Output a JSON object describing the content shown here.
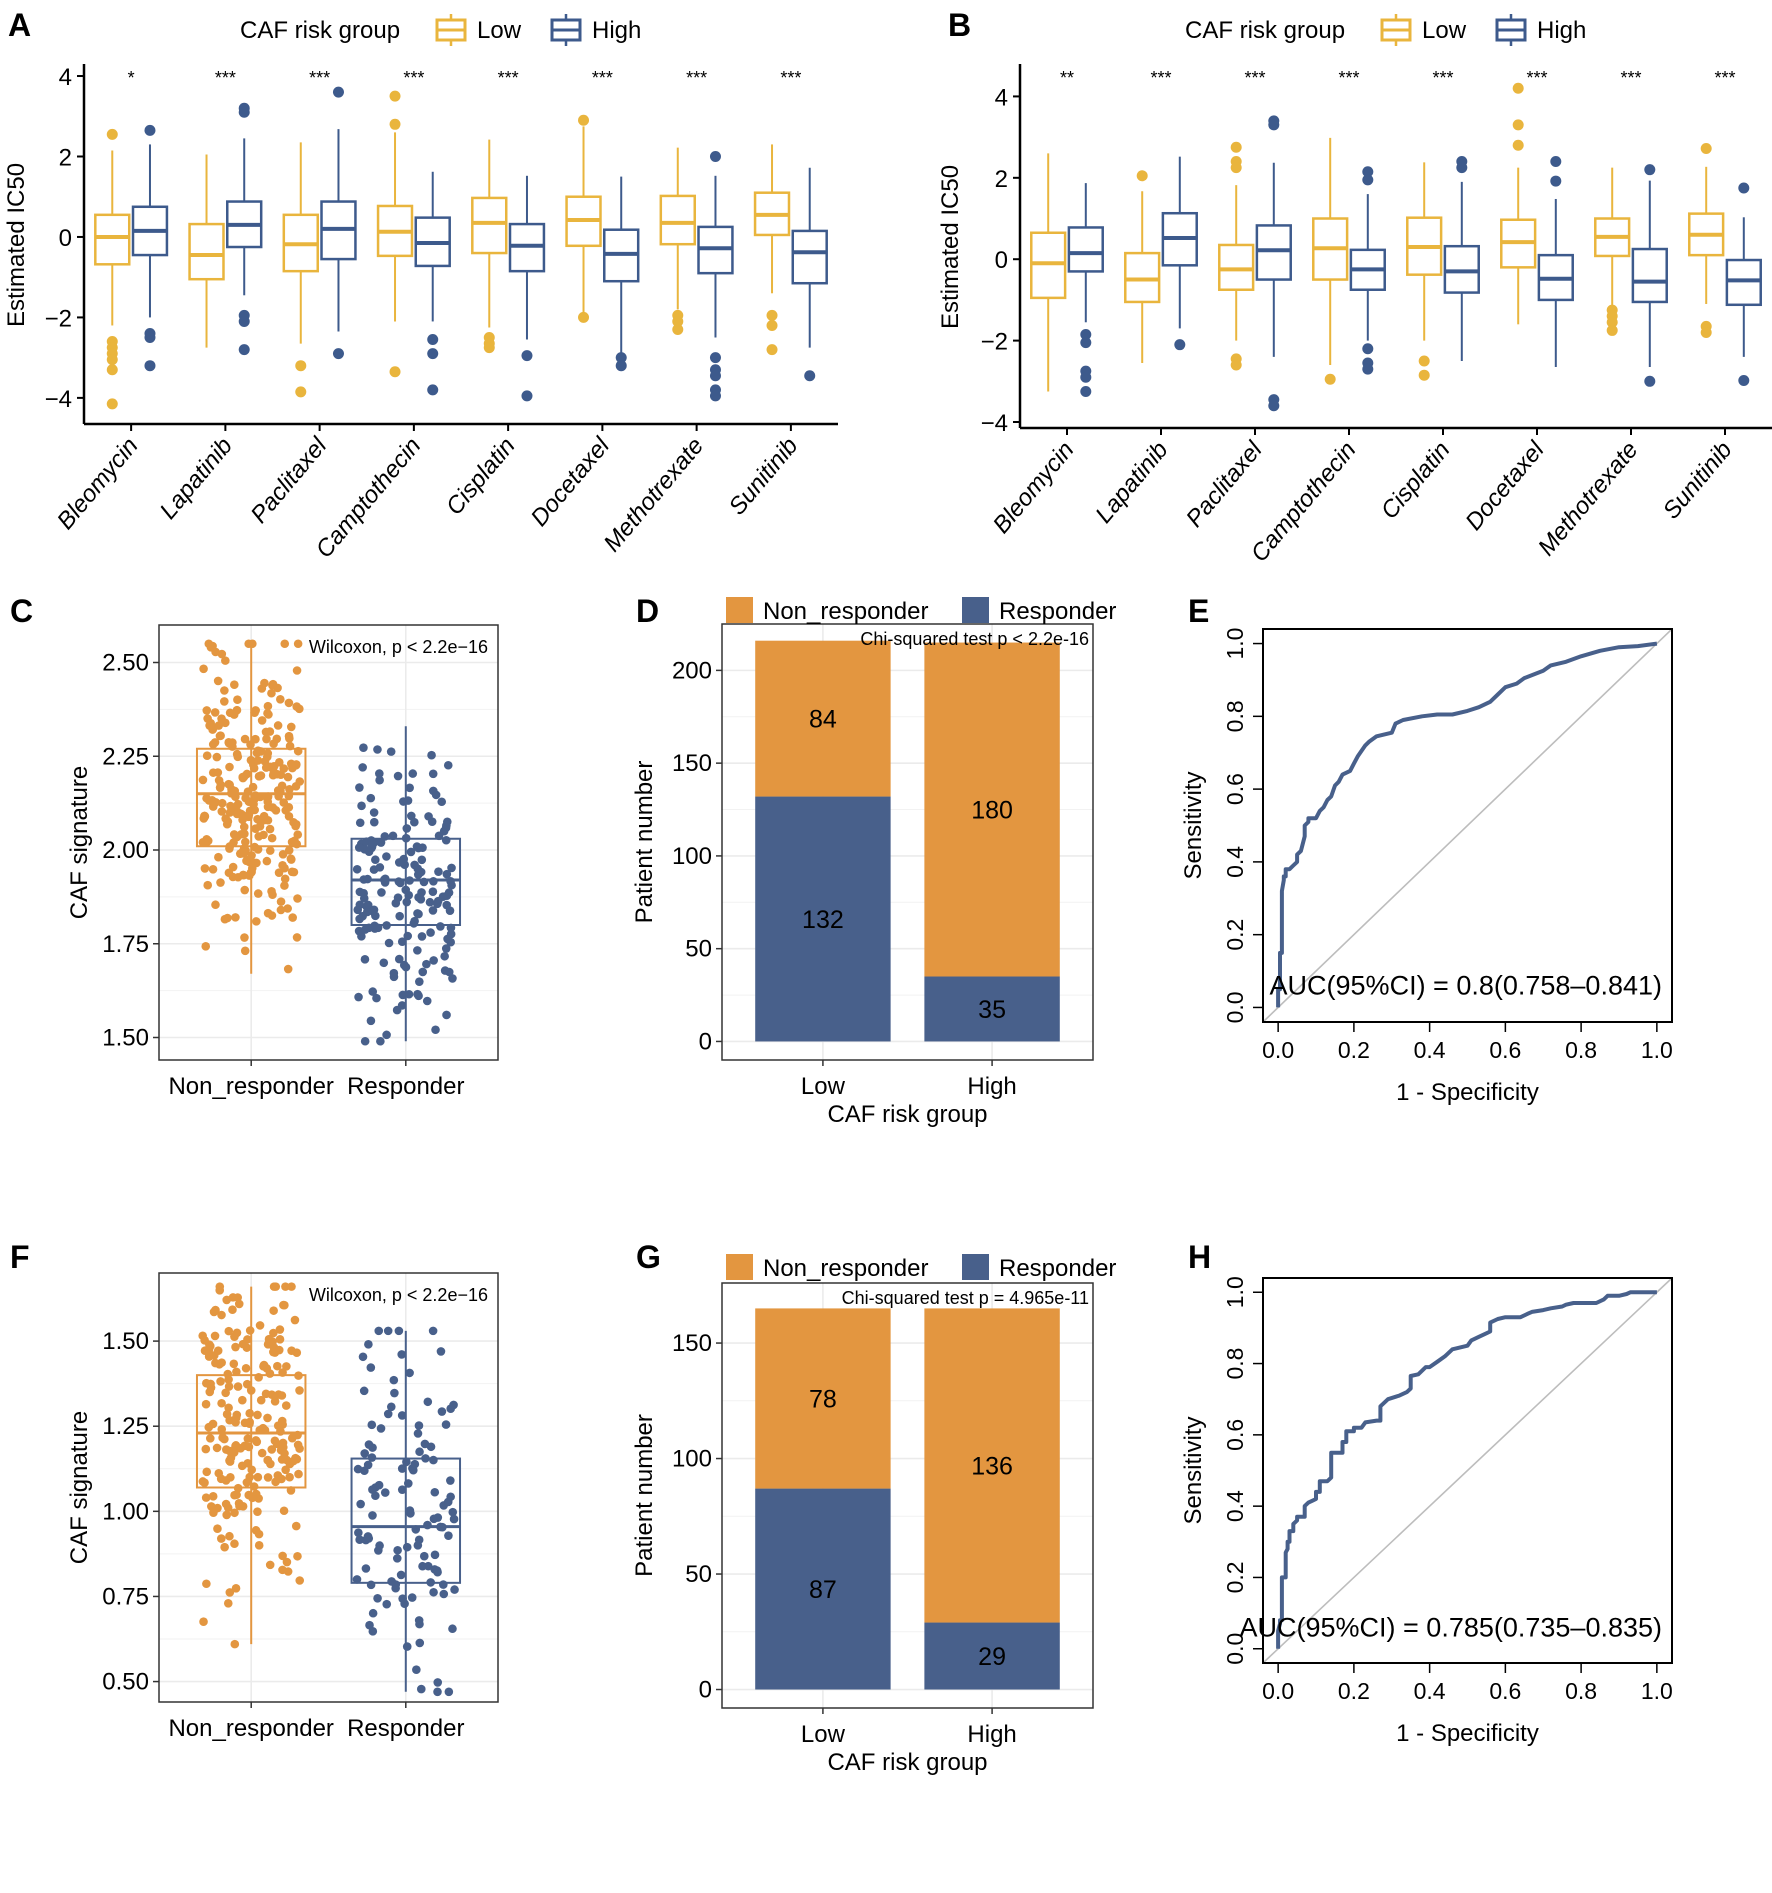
{
  "colors": {
    "low_box": "#E9B53D",
    "high_box": "#3D5A8C",
    "non_responder": "#E39640",
    "responder": "#48608B",
    "roc": "#48608B",
    "diagonal": "#BDBDBD",
    "grid": "#EBEBEB"
  },
  "chart_data": [
    {
      "panel": "A",
      "type": "box",
      "title": "",
      "ylabel": "Estimated IC50",
      "xlabel": "",
      "ylim": [
        -4.5,
        4.1
      ],
      "yticks": [
        -4,
        -2,
        0,
        2,
        4
      ],
      "legend": {
        "title": "CAF risk group",
        "entries": [
          "Low",
          "High"
        ],
        "position": "top"
      },
      "categories": [
        "Bleomycin",
        "Lapatinib",
        "Paclitaxel",
        "Camptothecin",
        "Cisplatin",
        "Docetaxel",
        "Methotrexate",
        "Sunitinib"
      ],
      "significance": [
        "*",
        "***",
        "***",
        "***",
        "***",
        "***",
        "***",
        "***"
      ],
      "series": [
        {
          "name": "Low",
          "boxes": [
            {
              "q1": -0.68,
              "median": 0.0,
              "q3": 0.55,
              "lower": -2.2,
              "upper": 2.15,
              "outliers": [
                2.55,
                -2.6,
                -2.75,
                -2.9,
                -3.05,
                -3.3,
                -4.15
              ]
            },
            {
              "q1": -1.05,
              "median": -0.45,
              "q3": 0.32,
              "lower": -2.75,
              "upper": 2.05,
              "outliers": []
            },
            {
              "q1": -0.85,
              "median": -0.18,
              "q3": 0.55,
              "lower": -2.65,
              "upper": 2.35,
              "outliers": [
                -3.2,
                -3.85
              ]
            },
            {
              "q1": -0.47,
              "median": 0.13,
              "q3": 0.77,
              "lower": -2.1,
              "upper": 2.6,
              "outliers": [
                3.5,
                2.8,
                -3.35
              ]
            },
            {
              "q1": -0.4,
              "median": 0.35,
              "q3": 0.97,
              "lower": -2.25,
              "upper": 2.42,
              "outliers": [
                -2.5,
                -2.65,
                -2.75
              ]
            },
            {
              "q1": -0.22,
              "median": 0.42,
              "q3": 1.0,
              "lower": -1.95,
              "upper": 2.75,
              "outliers": [
                2.9,
                -2.0
              ]
            },
            {
              "q1": -0.18,
              "median": 0.35,
              "q3": 1.02,
              "lower": -1.8,
              "upper": 2.22,
              "outliers": [
                -1.95,
                -2.1,
                -2.3
              ]
            },
            {
              "q1": 0.05,
              "median": 0.55,
              "q3": 1.1,
              "lower": -1.4,
              "upper": 2.3,
              "outliers": [
                -1.95,
                -2.2,
                -2.8
              ]
            }
          ]
        },
        {
          "name": "High",
          "boxes": [
            {
              "q1": -0.45,
              "median": 0.15,
              "q3": 0.75,
              "lower": -2.0,
              "upper": 2.3,
              "outliers": [
                2.65,
                -2.4,
                -2.5,
                -3.2
              ]
            },
            {
              "q1": -0.25,
              "median": 0.3,
              "q3": 0.88,
              "lower": -1.45,
              "upper": 2.45,
              "outliers": [
                3.1,
                3.2,
                -1.95,
                -2.1,
                -2.8
              ]
            },
            {
              "q1": -0.55,
              "median": 0.2,
              "q3": 0.88,
              "lower": -2.35,
              "upper": 2.68,
              "outliers": [
                3.6,
                -2.9
              ]
            },
            {
              "q1": -0.72,
              "median": -0.15,
              "q3": 0.48,
              "lower": -2.1,
              "upper": 1.62,
              "outliers": [
                -2.55,
                -2.9,
                -3.8
              ]
            },
            {
              "q1": -0.85,
              "median": -0.22,
              "q3": 0.32,
              "lower": -2.55,
              "upper": 1.52,
              "outliers": [
                -2.95,
                -3.95
              ]
            },
            {
              "q1": -1.1,
              "median": -0.42,
              "q3": 0.18,
              "lower": -2.95,
              "upper": 1.5,
              "outliers": [
                -3.0,
                -3.2
              ]
            },
            {
              "q1": -0.9,
              "median": -0.28,
              "q3": 0.25,
              "lower": -2.5,
              "upper": 1.52,
              "outliers": [
                2.0,
                -3.0,
                -3.3,
                -3.45,
                -3.8,
                -3.95
              ]
            },
            {
              "q1": -1.15,
              "median": -0.38,
              "q3": 0.15,
              "lower": -2.75,
              "upper": 1.72,
              "outliers": [
                -3.45
              ]
            }
          ]
        }
      ]
    },
    {
      "panel": "B",
      "type": "box",
      "title": "",
      "ylabel": "Estimated IC50",
      "xlabel": "",
      "ylim": [
        -4.0,
        4.6
      ],
      "yticks": [
        -4,
        -2,
        0,
        2,
        4
      ],
      "legend": {
        "title": "CAF risk group",
        "entries": [
          "Low",
          "High"
        ],
        "position": "top"
      },
      "categories": [
        "Bleomycin",
        "Lapatinib",
        "Paclitaxel",
        "Camptothecin",
        "Cisplatin",
        "Docetaxel",
        "Methotrexate",
        "Sunitinib"
      ],
      "significance": [
        "**",
        "***",
        "***",
        "***",
        "***",
        "***",
        "***",
        "***"
      ],
      "series": [
        {
          "name": "Low",
          "boxes": [
            {
              "q1": -0.95,
              "median": -0.1,
              "q3": 0.65,
              "lower": -3.25,
              "upper": 2.6,
              "outliers": []
            },
            {
              "q1": -1.05,
              "median": -0.5,
              "q3": 0.15,
              "lower": -2.55,
              "upper": 1.67,
              "outliers": [
                2.05
              ]
            },
            {
              "q1": -0.75,
              "median": -0.25,
              "q3": 0.35,
              "lower": -2.0,
              "upper": 1.82,
              "outliers": [
                2.75,
                2.4,
                2.25,
                -2.45,
                -2.6
              ]
            },
            {
              "q1": -0.5,
              "median": 0.27,
              "q3": 1.0,
              "lower": -2.6,
              "upper": 2.98,
              "outliers": [
                -2.95
              ]
            },
            {
              "q1": -0.38,
              "median": 0.3,
              "q3": 1.02,
              "lower": -2.0,
              "upper": 2.38,
              "outliers": [
                -2.5,
                -2.85
              ]
            },
            {
              "q1": -0.2,
              "median": 0.42,
              "q3": 0.97,
              "lower": -1.6,
              "upper": 2.25,
              "outliers": [
                4.2,
                3.3,
                2.8
              ]
            },
            {
              "q1": 0.08,
              "median": 0.55,
              "q3": 1.0,
              "lower": -1.2,
              "upper": 2.25,
              "outliers": [
                -1.25,
                -1.4,
                -1.55,
                -1.75
              ]
            },
            {
              "q1": 0.1,
              "median": 0.6,
              "q3": 1.12,
              "lower": -1.1,
              "upper": 2.27,
              "outliers": [
                2.72,
                -1.65,
                -1.8
              ]
            }
          ]
        },
        {
          "name": "High",
          "boxes": [
            {
              "q1": -0.3,
              "median": 0.15,
              "q3": 0.78,
              "lower": -1.55,
              "upper": 1.87,
              "outliers": [
                -1.85,
                -2.05,
                -2.75,
                -2.9,
                -3.25
              ]
            },
            {
              "q1": -0.15,
              "median": 0.52,
              "q3": 1.13,
              "lower": -1.7,
              "upper": 2.52,
              "outliers": [
                -2.1
              ]
            },
            {
              "q1": -0.5,
              "median": 0.22,
              "q3": 0.83,
              "lower": -2.4,
              "upper": 2.37,
              "outliers": [
                3.3,
                3.4,
                -3.45,
                -3.6
              ]
            },
            {
              "q1": -0.75,
              "median": -0.25,
              "q3": 0.23,
              "lower": -2.0,
              "upper": 1.6,
              "outliers": [
                2.15,
                1.95,
                -2.2,
                -2.55,
                -2.7
              ]
            },
            {
              "q1": -0.82,
              "median": -0.3,
              "q3": 0.32,
              "lower": -2.5,
              "upper": 1.9,
              "outliers": [
                2.4,
                2.25
              ]
            },
            {
              "q1": -1.0,
              "median": -0.48,
              "q3": 0.1,
              "lower": -2.65,
              "upper": 1.48,
              "outliers": [
                2.4,
                1.92
              ]
            },
            {
              "q1": -1.05,
              "median": -0.55,
              "q3": 0.25,
              "lower": -2.65,
              "upper": 1.93,
              "outliers": [
                2.2,
                -3.0
              ]
            },
            {
              "q1": -1.12,
              "median": -0.52,
              "q3": -0.02,
              "lower": -2.4,
              "upper": 1.03,
              "outliers": [
                1.75,
                -2.98
              ]
            }
          ]
        }
      ]
    },
    {
      "panel": "C",
      "type": "box-jitter",
      "ylabel": "CAF signature",
      "xlabel": "",
      "ylim": [
        1.44,
        2.6
      ],
      "yticks": [
        1.5,
        1.75,
        2.0,
        2.25,
        2.5
      ],
      "ytick_labels": [
        "1.50",
        "1.75",
        "2.00",
        "2.25",
        "2.50"
      ],
      "categories": [
        "Non_responder",
        "Responder"
      ],
      "annotation": "Wilcoxon, p < 2.2e−16",
      "groups": [
        {
          "name": "Non_responder",
          "n": 264,
          "q1": 2.01,
          "median": 2.15,
          "q3": 2.27,
          "lower": 1.67,
          "upper": 2.55,
          "point_range": [
            1.54,
            2.55
          ]
        },
        {
          "name": "Responder",
          "n": 167,
          "q1": 1.8,
          "median": 1.92,
          "q3": 2.03,
          "lower": 1.49,
          "upper": 2.33,
          "point_range": [
            1.49,
            2.4
          ]
        }
      ]
    },
    {
      "panel": "D",
      "type": "bar",
      "stacked": true,
      "ylabel": "Patient number",
      "xlabel": "CAF risk group",
      "ylim": [
        -10,
        225
      ],
      "yticks": [
        0,
        50,
        100,
        150,
        200
      ],
      "categories": [
        "Low",
        "High"
      ],
      "legend": {
        "entries": [
          "Non_responder",
          "Responder"
        ],
        "position": "top"
      },
      "annotation": "Chi-squared test p < 2.2e-16",
      "series": [
        {
          "name": "Responder",
          "values": [
            132,
            35
          ]
        },
        {
          "name": "Non_responder",
          "values": [
            84,
            180
          ]
        }
      ]
    },
    {
      "panel": "E",
      "type": "line",
      "subtype": "roc",
      "xlabel": "1 - Specificity",
      "ylabel": "Sensitivity",
      "xlim": [
        -0.04,
        1.04
      ],
      "ylim": [
        -0.04,
        1.04
      ],
      "xticks": [
        0.0,
        0.2,
        0.4,
        0.6,
        0.8,
        1.0
      ],
      "yticks": [
        0.0,
        0.2,
        0.4,
        0.6,
        0.8,
        1.0
      ],
      "tick_labels": [
        "0.0",
        "0.2",
        "0.4",
        "0.6",
        "0.8",
        "1.0"
      ],
      "annotation": "AUC(95%CI) = 0.8(0.758–0.841)",
      "auc": 0.8,
      "ci": [
        0.758,
        0.841
      ],
      "x": [
        0,
        0,
        0.005,
        0.005,
        0.01,
        0.01,
        0.015,
        0.015,
        0.02,
        0.02,
        0.03,
        0.04,
        0.05,
        0.05,
        0.06,
        0.07,
        0.07,
        0.08,
        0.08,
        0.1,
        0.11,
        0.12,
        0.13,
        0.14,
        0.15,
        0.16,
        0.17,
        0.19,
        0.2,
        0.21,
        0.23,
        0.24,
        0.26,
        0.3,
        0.31,
        0.33,
        0.38,
        0.42,
        0.46,
        0.5,
        0.53,
        0.56,
        0.58,
        0.6,
        0.63,
        0.65,
        0.7,
        0.72,
        0.76,
        0.8,
        0.85,
        0.9,
        0.95,
        1.0
      ],
      "y": [
        0,
        0.05,
        0.05,
        0.15,
        0.15,
        0.32,
        0.35,
        0.36,
        0.36,
        0.38,
        0.38,
        0.39,
        0.4,
        0.42,
        0.43,
        0.47,
        0.5,
        0.51,
        0.52,
        0.52,
        0.54,
        0.55,
        0.57,
        0.58,
        0.61,
        0.62,
        0.64,
        0.65,
        0.67,
        0.69,
        0.72,
        0.73,
        0.745,
        0.755,
        0.78,
        0.79,
        0.8,
        0.805,
        0.805,
        0.815,
        0.825,
        0.84,
        0.86,
        0.88,
        0.89,
        0.905,
        0.925,
        0.94,
        0.95,
        0.965,
        0.98,
        0.99,
        0.993,
        1.0
      ]
    },
    {
      "panel": "F",
      "type": "box-jitter",
      "ylabel": "CAF signature",
      "xlabel": "",
      "ylim": [
        0.44,
        1.7
      ],
      "yticks": [
        0.5,
        0.75,
        1.0,
        1.25,
        1.5
      ],
      "ytick_labels": [
        "0.50",
        "0.75",
        "1.00",
        "1.25",
        "1.50"
      ],
      "categories": [
        "Non_responder",
        "Responder"
      ],
      "annotation": "Wilcoxon, p < 2.2e−16",
      "groups": [
        {
          "name": "Non_responder",
          "n": 214,
          "q1": 1.07,
          "median": 1.23,
          "q3": 1.4,
          "lower": 0.61,
          "upper": 1.66,
          "point_range": [
            0.61,
            1.66
          ]
        },
        {
          "name": "Responder",
          "n": 116,
          "q1": 0.79,
          "median": 0.955,
          "q3": 1.155,
          "lower": 0.47,
          "upper": 1.53,
          "point_range": [
            0.47,
            1.53
          ]
        }
      ]
    },
    {
      "panel": "G",
      "type": "bar",
      "stacked": true,
      "ylabel": "Patient number",
      "xlabel": "CAF risk group",
      "ylim": [
        -8,
        176
      ],
      "yticks": [
        0,
        50,
        100,
        150
      ],
      "categories": [
        "Low",
        "High"
      ],
      "legend": {
        "entries": [
          "Non_responder",
          "Responder"
        ],
        "position": "top"
      },
      "annotation": "Chi-squared test p = 4.965e-11",
      "series": [
        {
          "name": "Responder",
          "values": [
            87,
            29
          ]
        },
        {
          "name": "Non_responder",
          "values": [
            78,
            136
          ]
        }
      ]
    },
    {
      "panel": "H",
      "type": "line",
      "subtype": "roc",
      "xlabel": "1 - Specificity",
      "ylabel": "Sensitivity",
      "xlim": [
        -0.04,
        1.04
      ],
      "ylim": [
        -0.04,
        1.04
      ],
      "xticks": [
        0.0,
        0.2,
        0.4,
        0.6,
        0.8,
        1.0
      ],
      "yticks": [
        0.0,
        0.2,
        0.4,
        0.6,
        0.8,
        1.0
      ],
      "tick_labels": [
        "0.0",
        "0.2",
        "0.4",
        "0.6",
        "0.8",
        "1.0"
      ],
      "annotation": "AUC(95%CI) = 0.785(0.735–0.835)",
      "auc": 0.785,
      "ci": [
        0.735,
        0.835
      ],
      "x": [
        0,
        0,
        0.005,
        0.005,
        0.01,
        0.01,
        0.02,
        0.02,
        0.025,
        0.025,
        0.03,
        0.03,
        0.04,
        0.04,
        0.05,
        0.05,
        0.07,
        0.07,
        0.08,
        0.09,
        0.1,
        0.1,
        0.11,
        0.11,
        0.13,
        0.14,
        0.14,
        0.17,
        0.17,
        0.18,
        0.18,
        0.2,
        0.2,
        0.22,
        0.23,
        0.26,
        0.27,
        0.27,
        0.29,
        0.32,
        0.34,
        0.35,
        0.35,
        0.37,
        0.39,
        0.4,
        0.42,
        0.44,
        0.46,
        0.5,
        0.51,
        0.53,
        0.55,
        0.56,
        0.56,
        0.58,
        0.6,
        0.64,
        0.66,
        0.67,
        0.7,
        0.72,
        0.75,
        0.76,
        0.78,
        0.84,
        0.86,
        0.87,
        0.9,
        0.92,
        0.93,
        1.0
      ],
      "y": [
        0,
        0.05,
        0.07,
        0.08,
        0.08,
        0.2,
        0.2,
        0.27,
        0.28,
        0.3,
        0.3,
        0.33,
        0.33,
        0.35,
        0.36,
        0.37,
        0.37,
        0.4,
        0.41,
        0.415,
        0.42,
        0.44,
        0.44,
        0.47,
        0.47,
        0.48,
        0.55,
        0.55,
        0.58,
        0.58,
        0.61,
        0.61,
        0.62,
        0.62,
        0.635,
        0.64,
        0.64,
        0.68,
        0.7,
        0.71,
        0.72,
        0.73,
        0.765,
        0.77,
        0.79,
        0.79,
        0.805,
        0.82,
        0.84,
        0.85,
        0.865,
        0.875,
        0.885,
        0.89,
        0.915,
        0.925,
        0.93,
        0.93,
        0.94,
        0.945,
        0.95,
        0.955,
        0.96,
        0.965,
        0.97,
        0.97,
        0.98,
        0.99,
        0.99,
        0.995,
        1.0,
        1.0
      ]
    }
  ]
}
